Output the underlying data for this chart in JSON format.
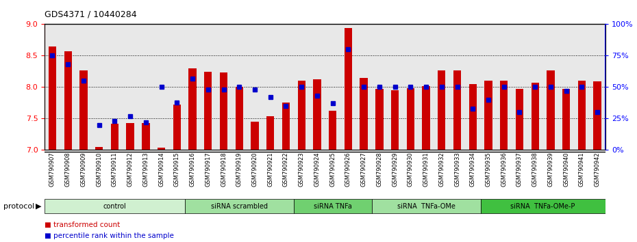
{
  "title": "GDS4371 / 10440284",
  "samples": [
    "GSM790907",
    "GSM790908",
    "GSM790909",
    "GSM790910",
    "GSM790911",
    "GSM790912",
    "GSM790913",
    "GSM790914",
    "GSM790915",
    "GSM790916",
    "GSM790917",
    "GSM790918",
    "GSM790919",
    "GSM790920",
    "GSM790921",
    "GSM790922",
    "GSM790923",
    "GSM790924",
    "GSM790925",
    "GSM790926",
    "GSM790927",
    "GSM790928",
    "GSM790929",
    "GSM790930",
    "GSM790931",
    "GSM790932",
    "GSM790933",
    "GSM790934",
    "GSM790935",
    "GSM790936",
    "GSM790937",
    "GSM790938",
    "GSM790939",
    "GSM790940",
    "GSM790941",
    "GSM790942"
  ],
  "red_values": [
    8.65,
    8.57,
    8.27,
    7.05,
    7.42,
    7.43,
    7.43,
    7.04,
    7.72,
    8.3,
    8.24,
    8.23,
    8.0,
    7.45,
    7.54,
    7.75,
    8.1,
    8.12,
    7.62,
    8.94,
    8.15,
    7.97,
    7.95,
    7.98,
    8.02,
    8.27,
    8.27,
    8.05,
    8.1,
    8.1,
    7.97,
    8.07,
    8.27,
    7.97,
    8.1,
    8.09
  ],
  "blue_values": [
    75,
    68,
    55,
    20,
    23,
    27,
    22,
    50,
    38,
    57,
    48,
    48,
    50,
    48,
    42,
    35,
    50,
    43,
    37,
    80,
    50,
    50,
    50,
    50,
    50,
    50,
    50,
    33,
    40,
    50,
    30,
    50,
    50,
    47,
    50,
    30
  ],
  "groups": [
    {
      "label": "control",
      "start": 0,
      "end": 9,
      "color": "#d0f0d0"
    },
    {
      "label": "siRNA scrambled",
      "start": 9,
      "end": 16,
      "color": "#a0e0a0"
    },
    {
      "label": "siRNA TNFa",
      "start": 16,
      "end": 21,
      "color": "#70d070"
    },
    {
      "label": "siRNA  TNFa-OMe",
      "start": 21,
      "end": 28,
      "color": "#a0e0a0"
    },
    {
      "label": "siRNA  TNFa-OMe-P",
      "start": 28,
      "end": 36,
      "color": "#40c040"
    }
  ],
  "ylim_left": [
    7.0,
    9.0
  ],
  "ylim_right": [
    0,
    100
  ],
  "yticks_left": [
    7.0,
    7.5,
    8.0,
    8.5,
    9.0
  ],
  "yticks_right": [
    0,
    25,
    50,
    75,
    100
  ],
  "bar_color": "#cc0000",
  "dot_color": "#0000cc",
  "bar_width": 0.5,
  "background_color": "#e8e8e8"
}
